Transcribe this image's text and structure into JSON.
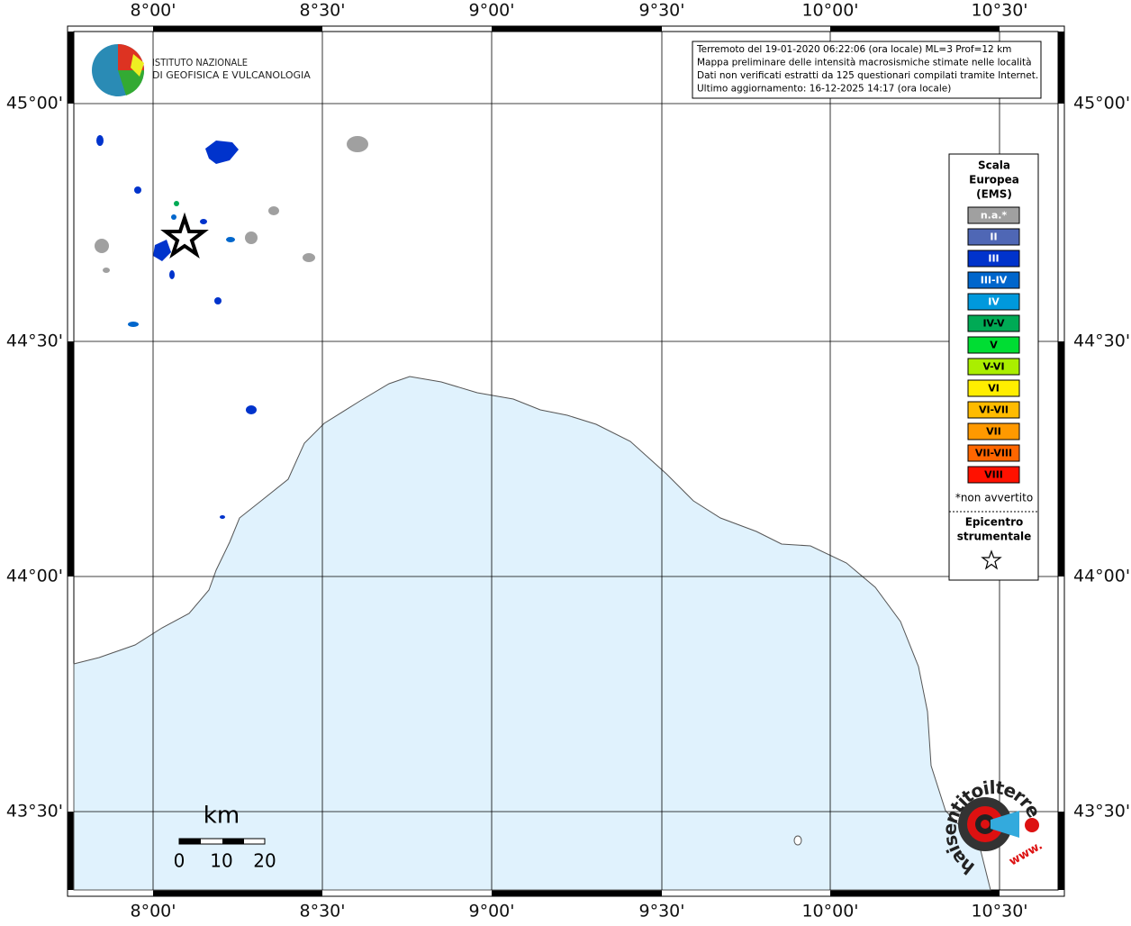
{
  "map": {
    "lon_labels": [
      "8°00'",
      "8°30'",
      "9°00'",
      "9°30'",
      "10°00'",
      "10°30'"
    ],
    "lat_labels": [
      "45°00'",
      "44°30'",
      "44°00'",
      "43°30'"
    ]
  },
  "logo": {
    "line1": "ISTITUTO NAZIONALE",
    "line2": "DI GEOFISICA E VULCANOLOGIA"
  },
  "info": [
    "Terremoto del 19-01-2020 06:22:06 (ora locale) ML=3 Prof=12 km",
    "Mappa preliminare delle intensità macrosismiche stimate nelle località",
    "Dati non verificati estratti da 125 questionari compilati tramite Internet.",
    "Ultimo aggiornamento: 16-12-2025 14:17 (ora locale)"
  ],
  "legend": {
    "title": [
      "Scala",
      "Europea",
      "(EMS)"
    ],
    "items": [
      {
        "label": "n.a.*",
        "color": "#a0a0a0"
      },
      {
        "label": "II",
        "color": "#4f67b5"
      },
      {
        "label": "III",
        "color": "#0033cc"
      },
      {
        "label": "III-IV",
        "color": "#0066cc"
      },
      {
        "label": "IV",
        "color": "#0099dd"
      },
      {
        "label": "IV-V",
        "color": "#00aa55"
      },
      {
        "label": "V",
        "color": "#00dd33"
      },
      {
        "label": "V-VI",
        "color": "#aaee00"
      },
      {
        "label": "VI",
        "color": "#ffee00"
      },
      {
        "label": "VI-VII",
        "color": "#ffbb00"
      },
      {
        "label": "VII",
        "color": "#ff9900"
      },
      {
        "label": "VII-VIII",
        "color": "#ff6600"
      },
      {
        "label": "VIII",
        "color": "#ff1100"
      }
    ],
    "note": "*non avvertito",
    "epicenter": [
      "Epicentro",
      "strumentale"
    ]
  },
  "scale_bar": {
    "unit": "km",
    "labels": [
      "0",
      "10",
      "20"
    ]
  },
  "watermark": {
    "site": "haisentitoilterremoto.it",
    "www": "www."
  }
}
